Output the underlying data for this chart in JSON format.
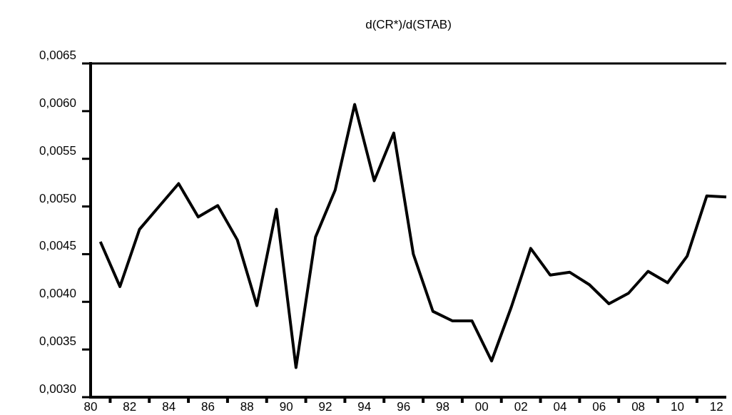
{
  "chart_data": {
    "type": "line",
    "title": "d(CR*)/d(STAB)",
    "x": [
      1980.5,
      1981.5,
      1982.5,
      1983.5,
      1984.5,
      1985.5,
      1986.5,
      1987.5,
      1988.5,
      1989.5,
      1990.5,
      1991.5,
      1992.5,
      1993.5,
      1994.5,
      1995.5,
      1996.5,
      1997.5,
      1998.5,
      1999.5,
      2000.5,
      2001.5,
      2002.5,
      2003.5,
      2004.5,
      2005.5,
      2006.5,
      2007.5,
      2008.5,
      2009.5,
      2010.5,
      2011.5,
      2012.5
    ],
    "series": [
      {
        "color": "#000000",
        "values": [
          0.00463,
          0.00416,
          0.00476,
          0.005,
          0.00524,
          0.00489,
          0.00501,
          0.00465,
          0.00396,
          0.00497,
          0.00331,
          0.00468,
          0.00517,
          0.00607,
          0.00527,
          0.00577,
          0.0045,
          0.0039,
          0.0038,
          0.0038,
          0.00338,
          0.00394,
          0.00456,
          0.00428,
          0.00431,
          0.00418,
          0.00398,
          0.00409,
          0.00432,
          0.0042,
          0.00448,
          0.00511,
          0.0051
        ]
      }
    ],
    "xlim": [
      1980,
      2012.5
    ],
    "xticks": [
      {
        "value": 1980,
        "label": "80"
      },
      {
        "value": 1981,
        "label": null
      },
      {
        "value": 1982,
        "label": "82"
      },
      {
        "value": 1983,
        "label": null
      },
      {
        "value": 1984,
        "label": "84"
      },
      {
        "value": 1985,
        "label": null
      },
      {
        "value": 1986,
        "label": "86"
      },
      {
        "value": 1987,
        "label": null
      },
      {
        "value": 1988,
        "label": "88"
      },
      {
        "value": 1989,
        "label": null
      },
      {
        "value": 1990,
        "label": "90"
      },
      {
        "value": 1991,
        "label": null
      },
      {
        "value": 1992,
        "label": "92"
      },
      {
        "value": 1993,
        "label": null
      },
      {
        "value": 1994,
        "label": "94"
      },
      {
        "value": 1995,
        "label": null
      },
      {
        "value": 1996,
        "label": "96"
      },
      {
        "value": 1997,
        "label": null
      },
      {
        "value": 1998,
        "label": "98"
      },
      {
        "value": 1999,
        "label": null
      },
      {
        "value": 2000,
        "label": "00"
      },
      {
        "value": 2001,
        "label": null
      },
      {
        "value": 2002,
        "label": "02"
      },
      {
        "value": 2003,
        "label": null
      },
      {
        "value": 2004,
        "label": "04"
      },
      {
        "value": 2005,
        "label": null
      },
      {
        "value": 2006,
        "label": "06"
      },
      {
        "value": 2007,
        "label": null
      },
      {
        "value": 2008,
        "label": "08"
      },
      {
        "value": 2009,
        "label": null
      },
      {
        "value": 2010,
        "label": "10"
      },
      {
        "value": 2011,
        "label": null
      },
      {
        "value": 2012,
        "label": "12"
      }
    ],
    "ylim": [
      0.003,
      0.0065
    ],
    "yticks": [
      {
        "value": 0.003,
        "label": "0,0030"
      },
      {
        "value": 0.0035,
        "label": "0,0035"
      },
      {
        "value": 0.004,
        "label": "0,0040"
      },
      {
        "value": 0.0045,
        "label": "0,0045"
      },
      {
        "value": 0.005,
        "label": "0,0050"
      },
      {
        "value": 0.0055,
        "label": "0,0055"
      },
      {
        "value": 0.006,
        "label": "0,0060"
      },
      {
        "value": 0.0065,
        "label": "0,0065"
      }
    ],
    "marker": "none",
    "line_style": "solid"
  }
}
